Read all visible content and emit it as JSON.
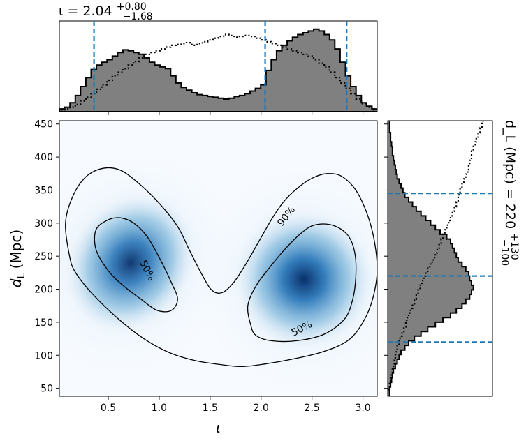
{
  "chart_data": {
    "type": "heatmap",
    "main": {
      "xlabel": "ι",
      "ylabel": "d_L (Mpc)",
      "xlim": [
        0.02,
        3.14
      ],
      "ylim": [
        38,
        455
      ],
      "xticks": [
        0.5,
        1.0,
        1.5,
        2.0,
        2.5,
        3.0
      ],
      "xtick_labels": [
        "0.5",
        "1.0",
        "1.5",
        "2.0",
        "2.5",
        "3.0"
      ],
      "yticks": [
        50,
        100,
        150,
        200,
        250,
        300,
        350,
        400,
        450
      ],
      "ytick_labels": [
        "50",
        "100",
        "150",
        "200",
        "250",
        "300",
        "350",
        "400",
        "450"
      ],
      "colormap": "Blues",
      "density_modes": [
        {
          "x": 0.72,
          "y": 240
        },
        {
          "x": 2.42,
          "y": 215
        }
      ],
      "contours": [
        {
          "level": "90%",
          "label": "90%",
          "label_at": {
            "x": 2.25,
            "y": 310
          },
          "points": [
            [
              0.12,
              250
            ],
            [
              0.08,
              300
            ],
            [
              0.15,
              340
            ],
            [
              0.28,
              370
            ],
            [
              0.45,
              383
            ],
            [
              0.62,
              380
            ],
            [
              0.8,
              360
            ],
            [
              1.0,
              330
            ],
            [
              1.18,
              295
            ],
            [
              1.3,
              258
            ],
            [
              1.42,
              222
            ],
            [
              1.52,
              198
            ],
            [
              1.62,
              195
            ],
            [
              1.73,
              210
            ],
            [
              1.85,
              238
            ],
            [
              1.97,
              270
            ],
            [
              2.1,
              305
            ],
            [
              2.22,
              332
            ],
            [
              2.35,
              352
            ],
            [
              2.5,
              368
            ],
            [
              2.65,
              375
            ],
            [
              2.8,
              370
            ],
            [
              2.95,
              345
            ],
            [
              3.08,
              295
            ],
            [
              3.14,
              235
            ],
            [
              3.1,
              188
            ],
            [
              3.0,
              150
            ],
            [
              2.85,
              122
            ],
            [
              2.6,
              105
            ],
            [
              2.3,
              94
            ],
            [
              2.0,
              86
            ],
            [
              1.8,
              83
            ],
            [
              1.6,
              86
            ],
            [
              1.35,
              92
            ],
            [
              1.1,
              104
            ],
            [
              0.85,
              125
            ],
            [
              0.6,
              155
            ],
            [
              0.35,
              192
            ],
            [
              0.18,
              225
            ],
            [
              0.12,
              250
            ]
          ]
        },
        {
          "level": "50%",
          "label": "50%",
          "label_at": {
            "x": 0.88,
            "y": 228
          },
          "points": [
            [
              0.38,
              290
            ],
            [
              0.5,
              305
            ],
            [
              0.62,
              308
            ],
            [
              0.75,
              300
            ],
            [
              0.88,
              280
            ],
            [
              1.0,
              248
            ],
            [
              1.12,
              210
            ],
            [
              1.18,
              185
            ],
            [
              1.12,
              168
            ],
            [
              0.98,
              168
            ],
            [
              0.82,
              185
            ],
            [
              0.65,
              205
            ],
            [
              0.5,
              228
            ],
            [
              0.38,
              260
            ],
            [
              0.38,
              290
            ]
          ]
        },
        {
          "level": "50%",
          "label": "50%",
          "label_at": {
            "x": 2.4,
            "y": 140
          },
          "points": [
            [
              1.9,
              145
            ],
            [
              1.87,
              175
            ],
            [
              1.95,
              205
            ],
            [
              2.08,
              232
            ],
            [
              2.22,
              258
            ],
            [
              2.38,
              283
            ],
            [
              2.52,
              297
            ],
            [
              2.7,
              297
            ],
            [
              2.85,
              282
            ],
            [
              2.92,
              255
            ],
            [
              2.93,
              220
            ],
            [
              2.9,
              185
            ],
            [
              2.82,
              155
            ],
            [
              2.62,
              132
            ],
            [
              2.35,
              122
            ],
            [
              2.1,
              122
            ],
            [
              1.95,
              130
            ],
            [
              1.9,
              145
            ]
          ]
        }
      ]
    },
    "top_marginal": {
      "title": "ι = 2.04",
      "title_sup": "+0.80",
      "title_sub": "−1.68",
      "median": 2.04,
      "lower": 0.36,
      "upper": 2.84,
      "bins_x": [
        0.02,
        0.072,
        0.124,
        0.176,
        0.228,
        0.28,
        0.332,
        0.384,
        0.436,
        0.488,
        0.54,
        0.592,
        0.644,
        0.696,
        0.748,
        0.8,
        0.852,
        0.904,
        0.956,
        1.008,
        1.06,
        1.112,
        1.164,
        1.216,
        1.268,
        1.32,
        1.372,
        1.424,
        1.476,
        1.528,
        1.58,
        1.632,
        1.684,
        1.736,
        1.788,
        1.84,
        1.892,
        1.944,
        1.996,
        2.048,
        2.1,
        2.152,
        2.204,
        2.256,
        2.308,
        2.36,
        2.412,
        2.464,
        2.516,
        2.568,
        2.62,
        2.672,
        2.724,
        2.776,
        2.828,
        2.88,
        2.932,
        2.984,
        3.036,
        3.088
      ],
      "posterior": [
        0.03,
        0.05,
        0.1,
        0.18,
        0.28,
        0.38,
        0.47,
        0.52,
        0.55,
        0.58,
        0.62,
        0.66,
        0.69,
        0.68,
        0.66,
        0.64,
        0.6,
        0.55,
        0.52,
        0.5,
        0.48,
        0.4,
        0.32,
        0.27,
        0.24,
        0.21,
        0.19,
        0.18,
        0.17,
        0.16,
        0.15,
        0.14,
        0.15,
        0.17,
        0.18,
        0.2,
        0.23,
        0.26,
        0.3,
        0.46,
        0.58,
        0.68,
        0.74,
        0.79,
        0.83,
        0.86,
        0.88,
        0.9,
        0.92,
        0.9,
        0.86,
        0.8,
        0.7,
        0.55,
        0.4,
        0.28,
        0.18,
        0.1,
        0.06,
        0.03
      ],
      "prior": [
        0.02,
        0.03,
        0.05,
        0.08,
        0.12,
        0.16,
        0.2,
        0.25,
        0.3,
        0.35,
        0.4,
        0.44,
        0.48,
        0.52,
        0.56,
        0.6,
        0.64,
        0.66,
        0.68,
        0.7,
        0.72,
        0.74,
        0.75,
        0.76,
        0.77,
        0.74,
        0.76,
        0.78,
        0.8,
        0.82,
        0.84,
        0.86,
        0.85,
        0.83,
        0.84,
        0.85,
        0.84,
        0.82,
        0.8,
        0.78,
        0.76,
        0.74,
        0.72,
        0.7,
        0.68,
        0.66,
        0.64,
        0.62,
        0.58,
        0.54,
        0.5,
        0.44,
        0.38,
        0.32,
        0.26,
        0.2,
        0.14,
        0.09,
        0.05,
        0.02
      ]
    },
    "right_marginal": {
      "title": "d_L (Mpc) = 220",
      "title_sup": "+130",
      "title_sub": "−100",
      "median": 220,
      "lower": 120,
      "upper": 345,
      "bins_y": [
        38,
        45,
        52,
        59,
        66,
        73,
        80,
        87,
        94,
        101,
        108,
        115,
        122,
        129,
        136,
        143,
        150,
        157,
        164,
        171,
        178,
        185,
        192,
        199,
        206,
        213,
        220,
        227,
        234,
        241,
        248,
        255,
        262,
        269,
        276,
        283,
        290,
        297,
        304,
        311,
        318,
        325,
        332,
        339,
        346,
        353,
        360,
        367,
        374,
        381,
        388,
        395,
        402,
        409,
        416,
        423,
        430,
        437,
        444,
        451
      ],
      "posterior": [
        0.02,
        0.02,
        0.03,
        0.04,
        0.05,
        0.06,
        0.08,
        0.1,
        0.12,
        0.14,
        0.18,
        0.22,
        0.28,
        0.35,
        0.42,
        0.5,
        0.58,
        0.66,
        0.72,
        0.78,
        0.82,
        0.86,
        0.88,
        0.9,
        0.88,
        0.86,
        0.85,
        0.82,
        0.78,
        0.74,
        0.72,
        0.7,
        0.68,
        0.66,
        0.62,
        0.55,
        0.5,
        0.45,
        0.4,
        0.35,
        0.3,
        0.26,
        0.22,
        0.18,
        0.16,
        0.14,
        0.12,
        0.1,
        0.09,
        0.08,
        0.07,
        0.06,
        0.05,
        0.05,
        0.04,
        0.03,
        0.03,
        0.02,
        0.02,
        0.02
      ],
      "prior": [
        0.0,
        0.01,
        0.02,
        0.03,
        0.04,
        0.05,
        0.06,
        0.07,
        0.08,
        0.09,
        0.1,
        0.12,
        0.13,
        0.15,
        0.17,
        0.19,
        0.2,
        0.22,
        0.24,
        0.26,
        0.28,
        0.3,
        0.32,
        0.34,
        0.36,
        0.38,
        0.4,
        0.42,
        0.45,
        0.48,
        0.5,
        0.52,
        0.54,
        0.56,
        0.58,
        0.6,
        0.62,
        0.64,
        0.66,
        0.68,
        0.7,
        0.72,
        0.74,
        0.75,
        0.76,
        0.78,
        0.8,
        0.82,
        0.84,
        0.85,
        0.86,
        0.88,
        0.88,
        0.9,
        0.92,
        0.93,
        0.95,
        0.97,
        0.99,
        1.0
      ]
    },
    "colors": {
      "hist_fill": "#808080",
      "hist_edge": "#000000",
      "ci_line": "#1f77b4",
      "contour": "#000000"
    }
  }
}
